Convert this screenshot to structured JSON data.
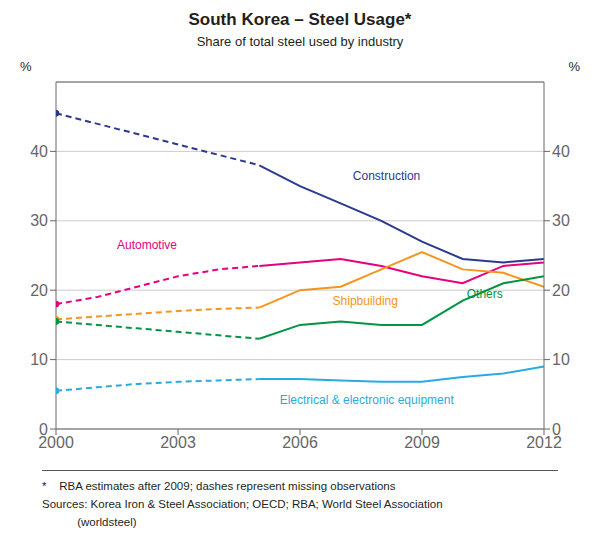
{
  "chart_data": {
    "type": "line",
    "title": "South Korea – Steel Usage*",
    "subtitle": "Share of total steel used by industry",
    "footnotes": [
      "*    RBA estimates after 2009; dashes represent missing observations",
      "Sources: Korea Iron & Steel Association; OECD; RBA; World Steel Association",
      "           (worldsteel)"
    ],
    "y_label": "%",
    "y2_label": "%",
    "x": [
      2000,
      2001,
      2002,
      2003,
      2004,
      2005,
      2006,
      2007,
      2008,
      2009,
      2010,
      2011,
      2012
    ],
    "xlim": [
      2000,
      2012
    ],
    "xticks": [
      2000,
      2003,
      2006,
      2009,
      2012
    ],
    "ylim": [
      0,
      50
    ],
    "yticks": [
      0,
      10,
      20,
      30,
      40
    ],
    "y2lim": [
      0,
      50
    ],
    "y2ticks": [
      0,
      10,
      20,
      30,
      40
    ],
    "grid": true,
    "series": [
      {
        "name": "Construction",
        "color": "#2b3990",
        "line_style": "dashed",
        "marker": "circle",
        "values": [
          45.5,
          44.0,
          42.5,
          41.0,
          39.5,
          38.0,
          null,
          null,
          null,
          null,
          null,
          null,
          null
        ]
      },
      {
        "name": "Construction",
        "color": "#2b3990",
        "line_style": "solid",
        "values": [
          null,
          null,
          null,
          null,
          null,
          38.0,
          35.0,
          32.5,
          30.0,
          27.0,
          24.5,
          24.0,
          24.5
        ]
      },
      {
        "name": "Automotive",
        "color": "#e6007e",
        "line_style": "dashed",
        "marker": "circle",
        "values": [
          18.0,
          19.0,
          20.5,
          22.0,
          23.0,
          23.5,
          null,
          null,
          null,
          null,
          null,
          null,
          null
        ]
      },
      {
        "name": "Automotive",
        "color": "#e6007e",
        "line_style": "solid",
        "values": [
          null,
          null,
          null,
          null,
          null,
          23.5,
          24.0,
          24.5,
          23.5,
          22.0,
          21.0,
          23.5,
          24.0
        ]
      },
      {
        "name": "Shipbuilding",
        "color": "#f7941d",
        "line_style": "dashed",
        "marker": "circle",
        "values": [
          15.8,
          16.2,
          16.6,
          17.0,
          17.3,
          17.5,
          null,
          null,
          null,
          null,
          null,
          null,
          null
        ]
      },
      {
        "name": "Shipbuilding",
        "color": "#f7941d",
        "line_style": "solid",
        "values": [
          null,
          null,
          null,
          null,
          null,
          17.5,
          20.0,
          20.5,
          23.0,
          25.5,
          23.0,
          22.5,
          20.5
        ]
      },
      {
        "name": "Others",
        "color": "#009444",
        "line_style": "dashed",
        "marker": "circle",
        "values": [
          15.5,
          15.0,
          14.5,
          14.0,
          13.5,
          13.0,
          null,
          null,
          null,
          null,
          null,
          null,
          null
        ]
      },
      {
        "name": "Others",
        "color": "#009444",
        "line_style": "solid",
        "values": [
          null,
          null,
          null,
          null,
          null,
          13.0,
          15.0,
          15.5,
          15.0,
          15.0,
          18.5,
          21.0,
          22.0
        ]
      },
      {
        "name": "Electrical & electronic equipment",
        "color": "#29abe2",
        "line_style": "dashed",
        "marker": "circle",
        "values": [
          5.5,
          6.0,
          6.5,
          6.8,
          7.0,
          7.2,
          null,
          null,
          null,
          null,
          null,
          null,
          null
        ]
      },
      {
        "name": "Electrical & electronic equipment",
        "color": "#29abe2",
        "line_style": "solid",
        "values": [
          null,
          null,
          null,
          null,
          null,
          7.2,
          7.2,
          7.0,
          6.8,
          6.8,
          7.5,
          8.0,
          9.0
        ]
      }
    ],
    "annotations": [
      {
        "text": "Construction",
        "x": 2007.3,
        "y": 36.5,
        "color": "#2b3990"
      },
      {
        "text": "Automotive",
        "x": 2001.5,
        "y": 26.5,
        "color": "#e6007e"
      },
      {
        "text": "Shipbuilding",
        "x": 2006.8,
        "y": 18.5,
        "color": "#f7941d"
      },
      {
        "text": "Others",
        "x": 2010.1,
        "y": 19.5,
        "color": "#009444"
      },
      {
        "text": "Electrical & electronic equipment",
        "x": 2005.5,
        "y": 4.2,
        "color": "#29abe2"
      }
    ]
  }
}
